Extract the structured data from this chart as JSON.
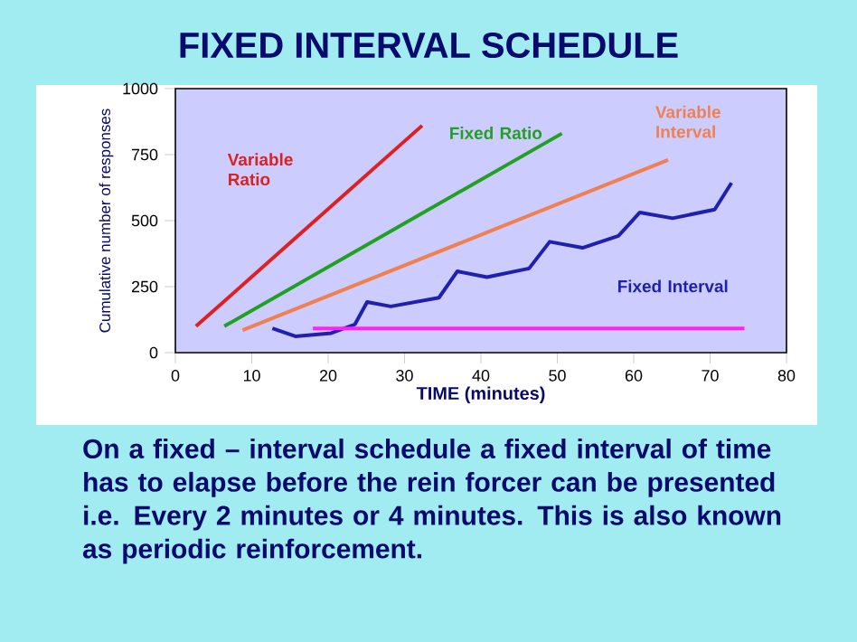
{
  "chart_data": {
    "type": "line",
    "title": "FIXED INTERVAL SCHEDULE",
    "xlabel": "TIME (minutes)",
    "ylabel": "Cumulative number of responses",
    "xlim": [
      0,
      80
    ],
    "xticks": [
      0,
      10,
      20,
      30,
      40,
      50,
      60,
      70,
      80
    ],
    "ylim": [
      0,
      1000
    ],
    "yticks": [
      0,
      250,
      500,
      750,
      1000
    ],
    "series": [
      {
        "name": "Variable Ratio",
        "color": "#dd2020",
        "x": [
          2.7,
          32.3
        ],
        "values": [
          100,
          860
        ]
      },
      {
        "name": "Fixed Ratio",
        "color": "#22a022",
        "x": [
          6.4,
          50.6
        ],
        "values": [
          100,
          830
        ]
      },
      {
        "name": "Variable Interval",
        "color": "#f08050",
        "x": [
          8.8,
          64.5
        ],
        "values": [
          85,
          730
        ]
      },
      {
        "name": "Fixed Interval",
        "color": "#2020b0",
        "x": [
          12.7,
          15.7,
          20.4,
          23.5,
          25.1,
          28.2,
          34.5,
          36.9,
          40.8,
          46.3,
          49,
          53.3,
          58,
          60.8,
          65.1,
          70.6,
          72.8
        ],
        "values": [
          92,
          62,
          74,
          107,
          192,
          175,
          208,
          308,
          286,
          319,
          420,
          397,
          442,
          531,
          509,
          542,
          643
        ]
      },
      {
        "color": "#ff20ff",
        "x": [
          18,
          74.5
        ],
        "values": [
          92,
          92
        ]
      }
    ],
    "annotations": [
      "On a fixed – interval schedule a fixed interval of time has to elapse before the rein forcer can be presented i.e.  Every 2 minutes or 4 minutes.  This is also known as periodic reinforcement."
    ]
  }
}
